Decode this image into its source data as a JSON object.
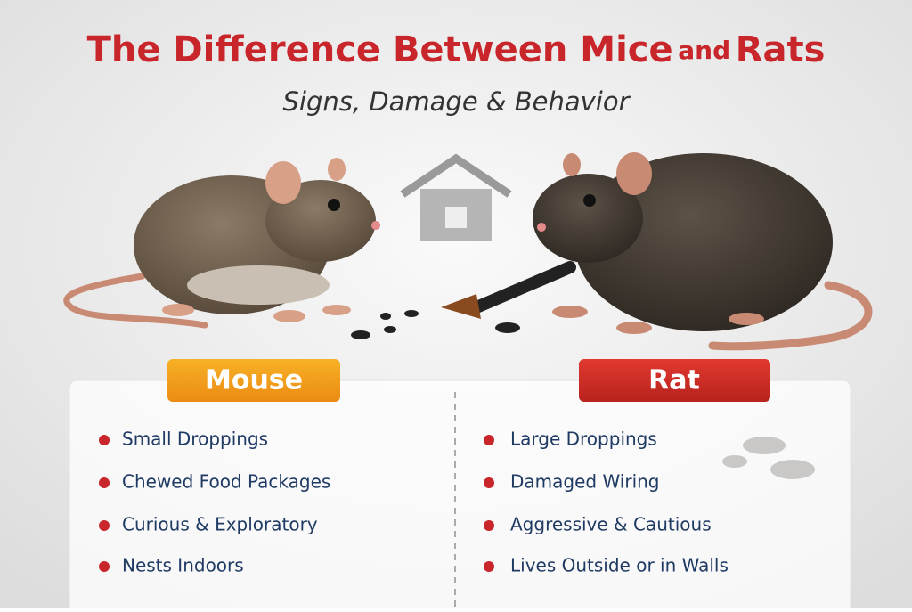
{
  "header": {
    "title": {
      "main": "The Difference Between Mice",
      "connector": "and",
      "end": "Rats"
    },
    "subtitle": "Signs, Damage & Behavior"
  },
  "columns": [
    {
      "label": "Mouse",
      "items": [
        "Small Droppings",
        "Chewed Food Packages",
        "Curious & Exploratory",
        "Nests Indoors"
      ]
    },
    {
      "label": "Rat",
      "items": [
        "Large Droppings",
        "Damaged Wiring",
        "Aggressive & Cautious",
        "Lives Outside or in Walls"
      ]
    }
  ]
}
